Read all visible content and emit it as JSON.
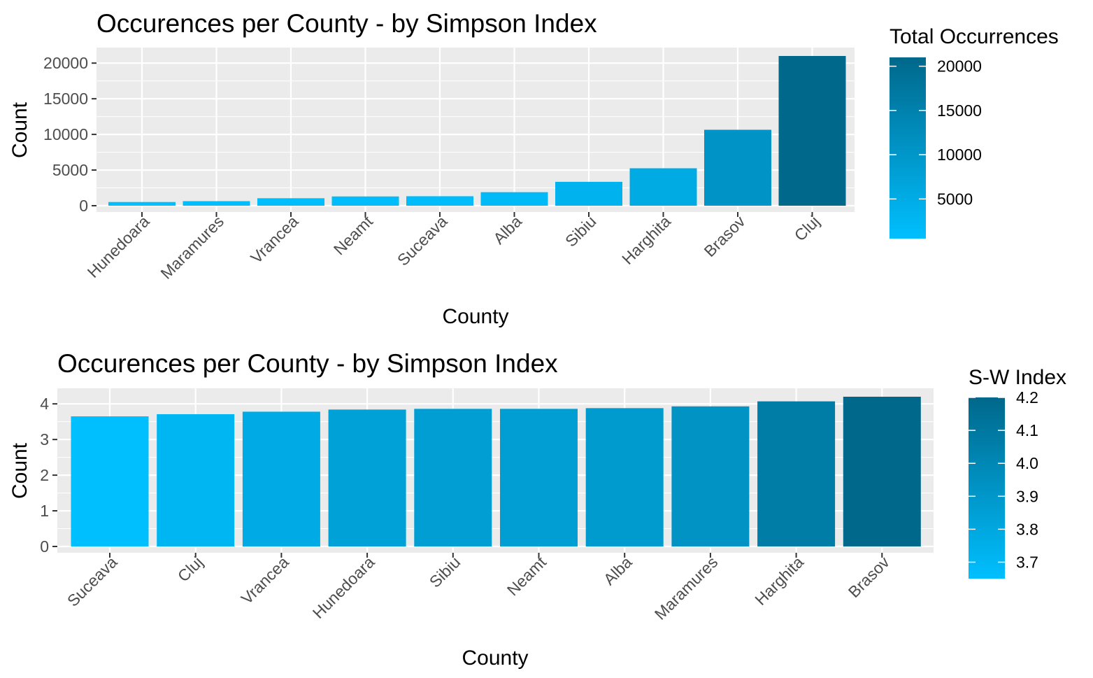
{
  "chart_data": [
    {
      "type": "bar",
      "title": "Occurences per County - by Simpson Index",
      "xlabel": "County",
      "ylabel": "Count",
      "categories": [
        "Hunedoara",
        "Maramures",
        "Vrancea",
        "Neamt",
        "Suceava",
        "Alba",
        "Sibiu",
        "Harghita",
        "Brasov",
        "Cluj"
      ],
      "values": [
        520,
        640,
        1050,
        1300,
        1330,
        1900,
        3350,
        5250,
        10650,
        21000
      ],
      "ylim": [
        0,
        22000
      ],
      "yticks": [
        0,
        5000,
        10000,
        15000,
        20000
      ],
      "grid": true,
      "legend": {
        "title": "Total Occurrences",
        "placement": "right",
        "ticks": [
          5000,
          10000,
          15000,
          20000
        ],
        "range": [
          520,
          21000
        ],
        "color_low": "#00BFFF",
        "color_high": "#00688B"
      }
    },
    {
      "type": "bar",
      "title": "Occurences per County - by Simpson Index",
      "xlabel": "County",
      "ylabel": "Count",
      "categories": [
        "Suceava",
        "Cluj",
        "Vrancea",
        "Hunedoara",
        "Sibiu",
        "Neamt",
        "Alba",
        "Maramures",
        "Harghita",
        "Brasov"
      ],
      "values": [
        3.65,
        3.71,
        3.78,
        3.84,
        3.86,
        3.86,
        3.88,
        3.93,
        4.07,
        4.2
      ],
      "ylim": [
        0,
        4.3
      ],
      "yticks": [
        0,
        1,
        2,
        3,
        4
      ],
      "grid": true,
      "legend": {
        "title": "S-W Index",
        "placement": "right",
        "ticks": [
          3.7,
          3.8,
          3.9,
          4.0,
          4.1,
          4.2
        ],
        "tick_labels": [
          "3.7",
          "3.8",
          "3.9",
          "4.0",
          "4.1",
          "4.2"
        ],
        "range": [
          3.65,
          4.2
        ],
        "color_low": "#00BFFF",
        "color_high": "#00688B"
      }
    }
  ]
}
